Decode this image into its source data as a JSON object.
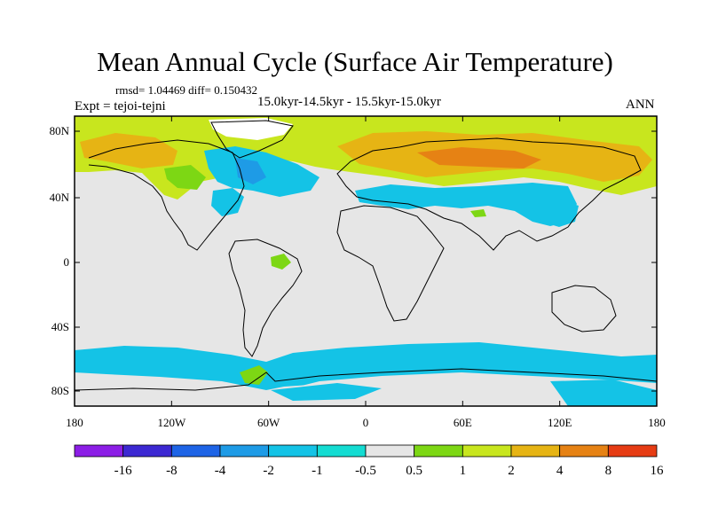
{
  "title": "Mean Annual Cycle (Surface Air Temperature)",
  "stats": "rmsd= 1.04469 diff= 0.150432",
  "subtitle": "15.0kyr-14.5kyr - 15.5kyr-15.0kyr",
  "experiment": "Expt = tejoi-tejni",
  "season": "ANN",
  "axes": {
    "lat_ticks": [
      "80N",
      "40N",
      "0",
      "40S",
      "80S"
    ],
    "lon_ticks": [
      "180",
      "120W",
      "60W",
      "0",
      "60E",
      "120E",
      "180"
    ]
  },
  "legend": {
    "labels": [
      "-16",
      "-8",
      "-4",
      "-2",
      "-1",
      "-0.5",
      "0.5",
      "1",
      "2",
      "4",
      "8",
      "16"
    ]
  },
  "colors": {
    "neutral": "#e6e6e6",
    "bins": [
      "#8c1ee6",
      "#3c28d2",
      "#1e64e6",
      "#1e9be6",
      "#14c3e6",
      "#14dcd2",
      "#e6e6e6",
      "#7dd714",
      "#c8e61e",
      "#e6b414",
      "#e68214",
      "#e63c14"
    ]
  }
}
